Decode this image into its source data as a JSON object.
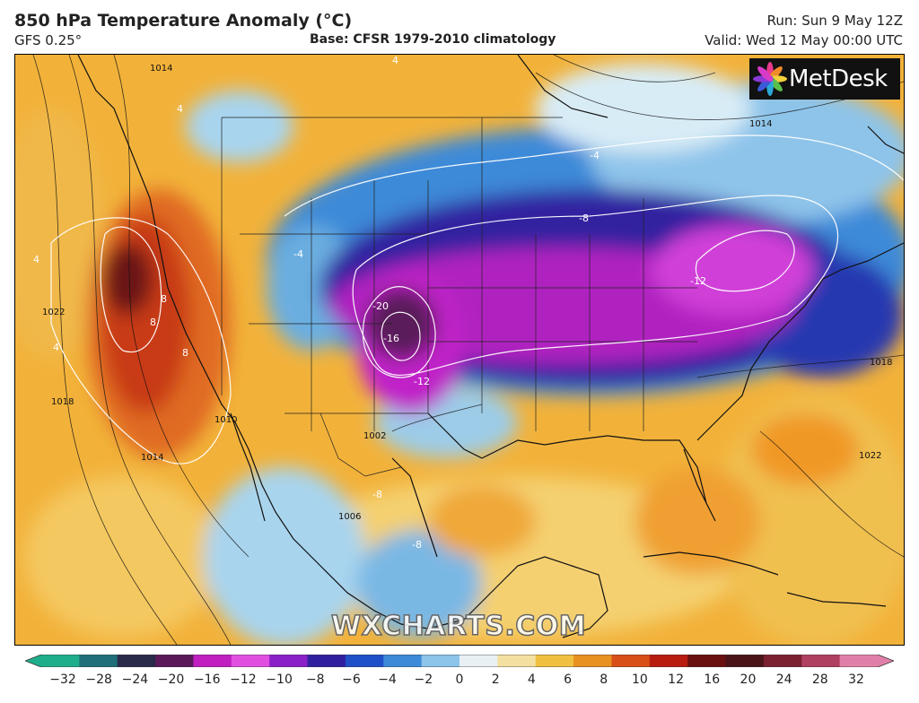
{
  "header": {
    "title": "850 hPa Temperature Anomaly (°C)",
    "subtitle": "GFS 0.25°",
    "base": "Base: CFSR 1979-2010 climatology",
    "run": "Run: Sun 9 May 12Z",
    "valid": "Valid: Wed 12 May 00:00 UTC"
  },
  "logo": {
    "text": "MetDesk",
    "icon": "metdesk-flower-icon"
  },
  "watermark": "WXCHARTS.COM",
  "map": {
    "contour_labels": {
      "neg20": "-20",
      "neg16": "-16",
      "neg12a": "-12",
      "neg12b": "-12",
      "neg8a": "-8",
      "neg8b": "-8",
      "neg8c": "-8",
      "neg4a": "-4",
      "neg4b": "-4",
      "pos4a": "4",
      "pos4b": "4",
      "pos4c": "4",
      "pos4d": "4",
      "pos8a": "8",
      "pos8b": "8",
      "pos8c": "8"
    },
    "isobar_labels": {
      "p1014a": "1014",
      "p1014b": "1014",
      "p1018a": "1018",
      "p1018b": "1018",
      "p1022a": "1022",
      "p1022b": "1022",
      "p1010": "1010",
      "p1002": "1002",
      "p1006": "1006",
      "p1014c": "1014"
    }
  },
  "colorbar": {
    "ticks": [
      "−32",
      "−28",
      "−24",
      "−20",
      "−16",
      "−12",
      "−10",
      "−8",
      "−6",
      "−4",
      "−2",
      "0",
      "2",
      "4",
      "6",
      "8",
      "10",
      "12",
      "16",
      "20",
      "24",
      "28",
      "32"
    ],
    "colors": [
      "#1fae8c",
      "#1f6e7a",
      "#2a2a4a",
      "#5a1a5a",
      "#c020c0",
      "#e050e0",
      "#8a20c8",
      "#3020a0",
      "#2050c8",
      "#3c8ad8",
      "#8cc4ea",
      "#e8f0f4",
      "#f4e0a0",
      "#f0c040",
      "#e89020",
      "#d85018",
      "#b81c10",
      "#6a1010",
      "#4a1418",
      "#7a2030",
      "#b04060",
      "#e080a8"
    ]
  }
}
